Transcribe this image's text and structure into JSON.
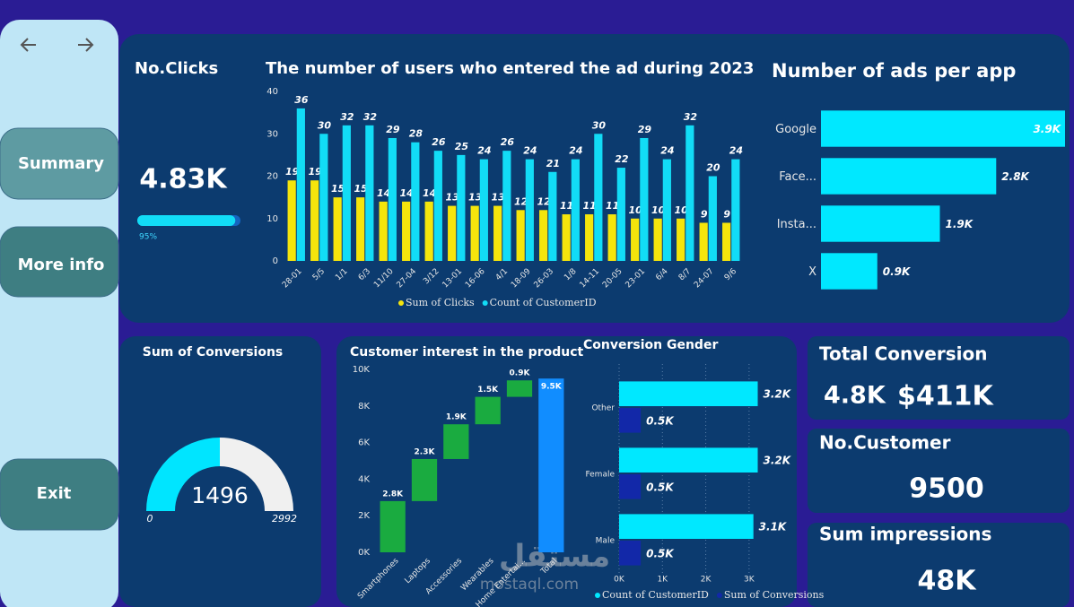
{
  "nav": {
    "buttons": [
      "Summary",
      "More info",
      "Exit"
    ]
  },
  "cards": {
    "clicks": {
      "title": "No.Clicks",
      "value": "4.83K",
      "progress": {
        "value": 95,
        "label": "95%"
      }
    },
    "total_conversion": {
      "title": "Total Conversion",
      "values": [
        "4.8K",
        "$411K"
      ]
    },
    "customers": {
      "title": "No.Customer",
      "value": 9500
    },
    "impressions": {
      "title": "Sum impressions",
      "value": "48K"
    }
  },
  "watermark": [
    "مستقل",
    "mostaql.com"
  ],
  "chart_data": [
    {
      "type": "bar",
      "title": "The number of users who entered the ad during 2023",
      "categories": [
        "28-01",
        "5/5",
        "1/1",
        "6/3",
        "11/10",
        "27-04",
        "3/12",
        "13-01",
        "16-06",
        "4/1",
        "18-09",
        "26-03",
        "1/8",
        "14-11",
        "20-05",
        "23-01",
        "6/4",
        "8/7",
        "24-07",
        "9/6"
      ],
      "series": [
        {
          "name": "Sum of Clicks",
          "color": "#f5e50c",
          "values": [
            19,
            19,
            15,
            15,
            14,
            14,
            14,
            13,
            13,
            13,
            12,
            12,
            11,
            11,
            11,
            10,
            10,
            10,
            9,
            9
          ]
        },
        {
          "name": "Count of CustomerID",
          "color": "#12dcf6",
          "values": [
            36,
            30,
            32,
            32,
            29,
            28,
            26,
            25,
            24,
            26,
            24,
            21,
            24,
            30,
            22,
            29,
            24,
            32,
            20,
            24
          ]
        }
      ],
      "ylim": [
        0,
        40
      ],
      "yticks": [
        0,
        10,
        20,
        30,
        40
      ],
      "grid": false,
      "legend": "bottom"
    },
    {
      "type": "barh",
      "title": "Number of ads per app",
      "categories": [
        "Google",
        "Face...",
        "Insta...",
        "X"
      ],
      "values": [
        3900,
        2800,
        1900,
        900
      ],
      "value_labels": [
        "3.9K",
        "2.8K",
        "1.9K",
        "0.9K"
      ],
      "color": "#00e8ff"
    },
    {
      "type": "gauge",
      "title": "Sum of Conversions",
      "value": 1496,
      "min": 0,
      "max": 2992,
      "color": "#00e5ff"
    },
    {
      "type": "waterfall",
      "title": "Customer interest in the product",
      "categories": [
        "Smartphones",
        "Laptops",
        "Accessories",
        "Wearables",
        "Home Entertai...",
        "Total"
      ],
      "values": [
        2800,
        2300,
        1900,
        1500,
        900,
        9500
      ],
      "value_labels": [
        "2.8K",
        "2.3K",
        "1.9K",
        "1.5K",
        "0.9K",
        "9.5K"
      ],
      "color": "#1aab40",
      "total_color": "#118dff",
      "ylim": [
        0,
        10000
      ],
      "yticks": [
        {
          "value": 0,
          "label": "0K"
        },
        {
          "value": 2000,
          "label": "2K"
        },
        {
          "value": 4000,
          "label": "4K"
        },
        {
          "value": 6000,
          "label": "6K"
        },
        {
          "value": 8000,
          "label": "8K"
        },
        {
          "value": 10000,
          "label": "10K"
        }
      ]
    },
    {
      "type": "barh",
      "title": "Conversion Gender",
      "categories": [
        "Other",
        "Female",
        "Male"
      ],
      "series": [
        {
          "name": "Count of CustomerID",
          "color": "#00e8ff",
          "values": [
            3200,
            3200,
            3100
          ],
          "value_labels": [
            "3.2K",
            "3.2K",
            "3.1K"
          ]
        },
        {
          "name": "Sum of Conversions",
          "color": "#1228a8",
          "values": [
            500,
            500,
            500
          ],
          "value_labels": [
            "0.5K",
            "0.5K",
            "0.5K"
          ]
        }
      ],
      "xlim": [
        0,
        3500
      ],
      "xticks": [
        {
          "value": 0,
          "label": "0K"
        },
        {
          "value": 1000,
          "label": "1K"
        },
        {
          "value": 2000,
          "label": "2K"
        },
        {
          "value": 3000,
          "label": "3K"
        }
      ],
      "grid": true,
      "legend": "bottom"
    }
  ]
}
